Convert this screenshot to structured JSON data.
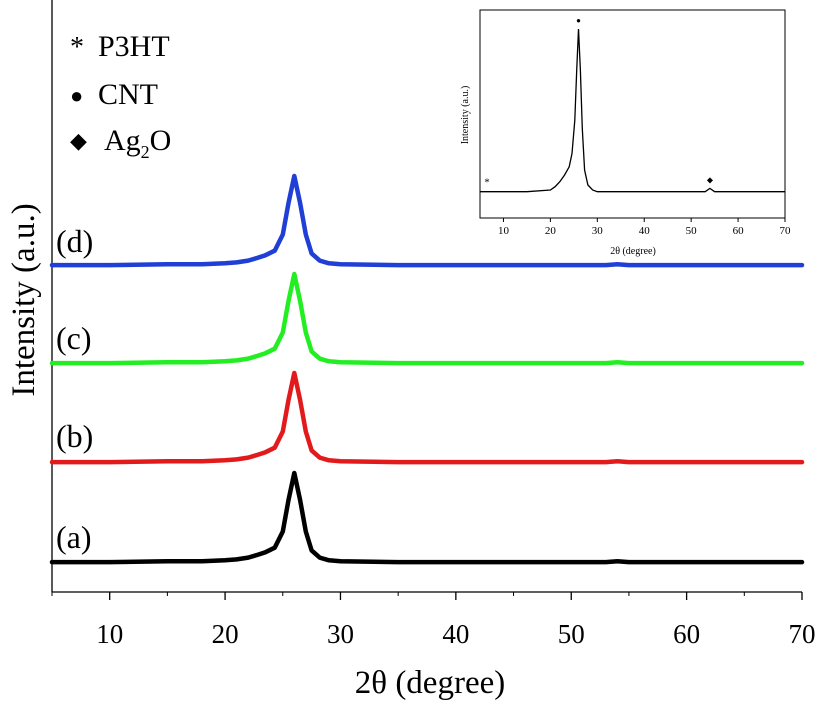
{
  "chart_data": [
    {
      "type": "line",
      "xlabel": "2θ (degree)",
      "ylabel": "Intensity (a.u.)",
      "xlim": [
        5,
        70
      ],
      "x_ticks": [
        10,
        20,
        30,
        40,
        50,
        60,
        70
      ],
      "legend": {
        "placement": "top-left",
        "items": [
          {
            "marker": "*",
            "label": "P3HT"
          },
          {
            "marker": "●",
            "label": "CNT"
          },
          {
            "marker": "◆",
            "label": "Ag",
            "sub": "2",
            "suffix": "O"
          }
        ]
      },
      "series": [
        {
          "name": "(a)",
          "color": "#000000",
          "points": [
            [
              5,
              0.01
            ],
            [
              10,
              0.01
            ],
            [
              15,
              0.02
            ],
            [
              18,
              0.02
            ],
            [
              20,
              0.03
            ],
            [
              21,
              0.04
            ],
            [
              22,
              0.06
            ],
            [
              22.8,
              0.09
            ],
            [
              23.5,
              0.12
            ],
            [
              24.3,
              0.17
            ],
            [
              25,
              0.35
            ],
            [
              25.5,
              0.7
            ],
            [
              26,
              1.0
            ],
            [
              26.5,
              0.7
            ],
            [
              27,
              0.35
            ],
            [
              27.5,
              0.14
            ],
            [
              28.2,
              0.06
            ],
            [
              29,
              0.03
            ],
            [
              30,
              0.02
            ],
            [
              35,
              0.01
            ],
            [
              40,
              0.01
            ],
            [
              45,
              0.01
            ],
            [
              50,
              0.01
            ],
            [
              53,
              0.01
            ],
            [
              54,
              0.02
            ],
            [
              55,
              0.01
            ],
            [
              60,
              0.01
            ],
            [
              65,
              0.01
            ],
            [
              70,
              0.01
            ]
          ]
        },
        {
          "name": "(b)",
          "color": "#e31a1c",
          "points": [
            [
              5,
              0.01
            ],
            [
              10,
              0.01
            ],
            [
              15,
              0.02
            ],
            [
              18,
              0.02
            ],
            [
              20,
              0.03
            ],
            [
              21,
              0.04
            ],
            [
              22,
              0.06
            ],
            [
              22.8,
              0.09
            ],
            [
              23.5,
              0.12
            ],
            [
              24.3,
              0.17
            ],
            [
              25,
              0.35
            ],
            [
              25.5,
              0.7
            ],
            [
              26,
              1.0
            ],
            [
              26.5,
              0.7
            ],
            [
              27,
              0.35
            ],
            [
              27.5,
              0.14
            ],
            [
              28.2,
              0.06
            ],
            [
              29,
              0.03
            ],
            [
              30,
              0.02
            ],
            [
              35,
              0.01
            ],
            [
              40,
              0.01
            ],
            [
              45,
              0.01
            ],
            [
              50,
              0.01
            ],
            [
              53,
              0.01
            ],
            [
              54,
              0.02
            ],
            [
              55,
              0.01
            ],
            [
              60,
              0.01
            ],
            [
              65,
              0.01
            ],
            [
              70,
              0.01
            ]
          ]
        },
        {
          "name": "(c)",
          "color": "#22ee22",
          "points": [
            [
              5,
              0.01
            ],
            [
              10,
              0.01
            ],
            [
              15,
              0.02
            ],
            [
              18,
              0.02
            ],
            [
              20,
              0.03
            ],
            [
              21,
              0.04
            ],
            [
              22,
              0.06
            ],
            [
              22.8,
              0.09
            ],
            [
              23.5,
              0.12
            ],
            [
              24.3,
              0.17
            ],
            [
              25,
              0.35
            ],
            [
              25.5,
              0.7
            ],
            [
              26,
              1.0
            ],
            [
              26.5,
              0.7
            ],
            [
              27,
              0.35
            ],
            [
              27.5,
              0.14
            ],
            [
              28.2,
              0.06
            ],
            [
              29,
              0.03
            ],
            [
              30,
              0.02
            ],
            [
              35,
              0.01
            ],
            [
              40,
              0.01
            ],
            [
              45,
              0.01
            ],
            [
              50,
              0.01
            ],
            [
              53,
              0.01
            ],
            [
              54,
              0.02
            ],
            [
              55,
              0.01
            ],
            [
              60,
              0.01
            ],
            [
              65,
              0.01
            ],
            [
              70,
              0.01
            ]
          ]
        },
        {
          "name": "(d)",
          "color": "#1f3fd6",
          "points": [
            [
              5,
              0.01
            ],
            [
              10,
              0.01
            ],
            [
              15,
              0.02
            ],
            [
              18,
              0.02
            ],
            [
              20,
              0.03
            ],
            [
              21,
              0.04
            ],
            [
              22,
              0.06
            ],
            [
              22.8,
              0.09
            ],
            [
              23.5,
              0.12
            ],
            [
              24.3,
              0.17
            ],
            [
              25,
              0.35
            ],
            [
              25.5,
              0.7
            ],
            [
              26,
              1.0
            ],
            [
              26.5,
              0.7
            ],
            [
              27,
              0.35
            ],
            [
              27.5,
              0.14
            ],
            [
              28.2,
              0.06
            ],
            [
              29,
              0.03
            ],
            [
              30,
              0.02
            ],
            [
              35,
              0.01
            ],
            [
              40,
              0.01
            ],
            [
              45,
              0.01
            ],
            [
              50,
              0.01
            ],
            [
              53,
              0.01
            ],
            [
              54,
              0.02
            ],
            [
              55,
              0.01
            ],
            [
              60,
              0.01
            ],
            [
              65,
              0.01
            ],
            [
              70,
              0.01
            ]
          ]
        }
      ]
    },
    {
      "type": "line",
      "xlabel": "2θ (degree)",
      "ylabel": "Intensity (a.u.)",
      "xlim": [
        5,
        70
      ],
      "x_ticks": [
        10,
        20,
        30,
        40,
        50,
        60,
        70
      ],
      "series": [
        {
          "name": "",
          "color": "#000000",
          "points": [
            [
              5,
              0.02
            ],
            [
              15,
              0.02
            ],
            [
              20,
              0.03
            ],
            [
              21,
              0.05
            ],
            [
              22,
              0.08
            ],
            [
              23,
              0.12
            ],
            [
              24,
              0.17
            ],
            [
              24.6,
              0.25
            ],
            [
              25.2,
              0.45
            ],
            [
              25.6,
              0.75
            ],
            [
              26,
              1.0
            ],
            [
              26.4,
              0.75
            ],
            [
              26.8,
              0.4
            ],
            [
              27.3,
              0.15
            ],
            [
              28,
              0.06
            ],
            [
              29,
              0.03
            ],
            [
              30,
              0.02
            ],
            [
              40,
              0.02
            ],
            [
              50,
              0.02
            ],
            [
              53,
              0.02
            ],
            [
              54,
              0.04
            ],
            [
              55,
              0.02
            ],
            [
              60,
              0.02
            ],
            [
              70,
              0.02
            ]
          ]
        }
      ],
      "markers": [
        {
          "symbol": "*",
          "x": 6.5
        },
        {
          "symbol": "●",
          "x": 26
        },
        {
          "symbol": "◆",
          "x": 54
        }
      ]
    }
  ]
}
